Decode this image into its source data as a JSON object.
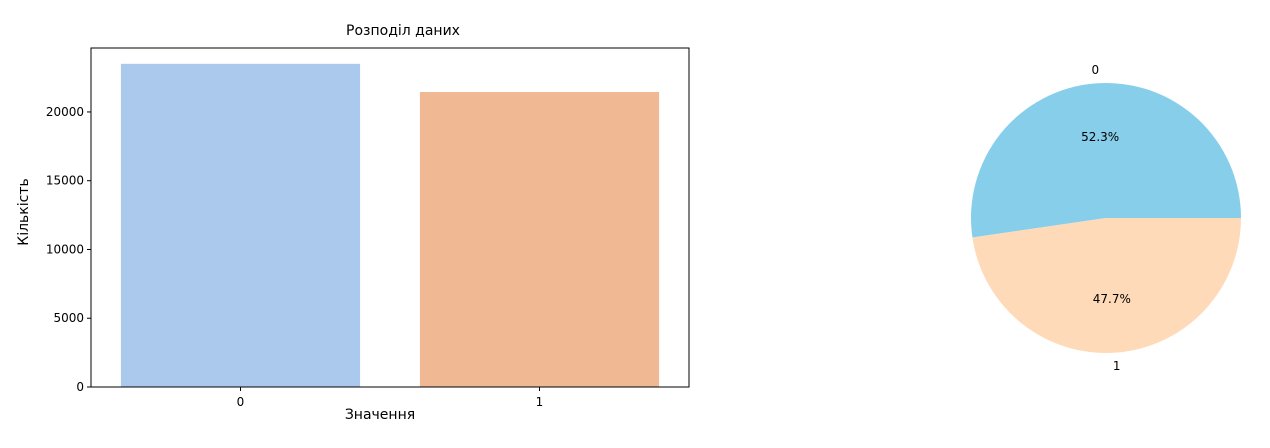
{
  "chart_data": [
    {
      "type": "bar",
      "title": "Розподіл даних",
      "xlabel": "Значення",
      "ylabel": "Кількість",
      "categories": [
        "0",
        "1"
      ],
      "values": [
        23500,
        21450
      ],
      "ylim": [
        0,
        24650
      ],
      "yticks": [
        0,
        5000,
        10000,
        15000,
        20000
      ],
      "ytick_labels": [
        "0",
        "5000",
        "10000",
        "15000",
        "20000"
      ],
      "colors": [
        "#abc9ec",
        "#f0b893"
      ],
      "grid": false
    },
    {
      "type": "pie",
      "labels": [
        "0",
        "1"
      ],
      "values": [
        52.3,
        47.7
      ],
      "pct_labels": [
        "52.3%",
        "47.7%"
      ],
      "colors": [
        "#87ceeb",
        "#ffdab9"
      ]
    }
  ]
}
